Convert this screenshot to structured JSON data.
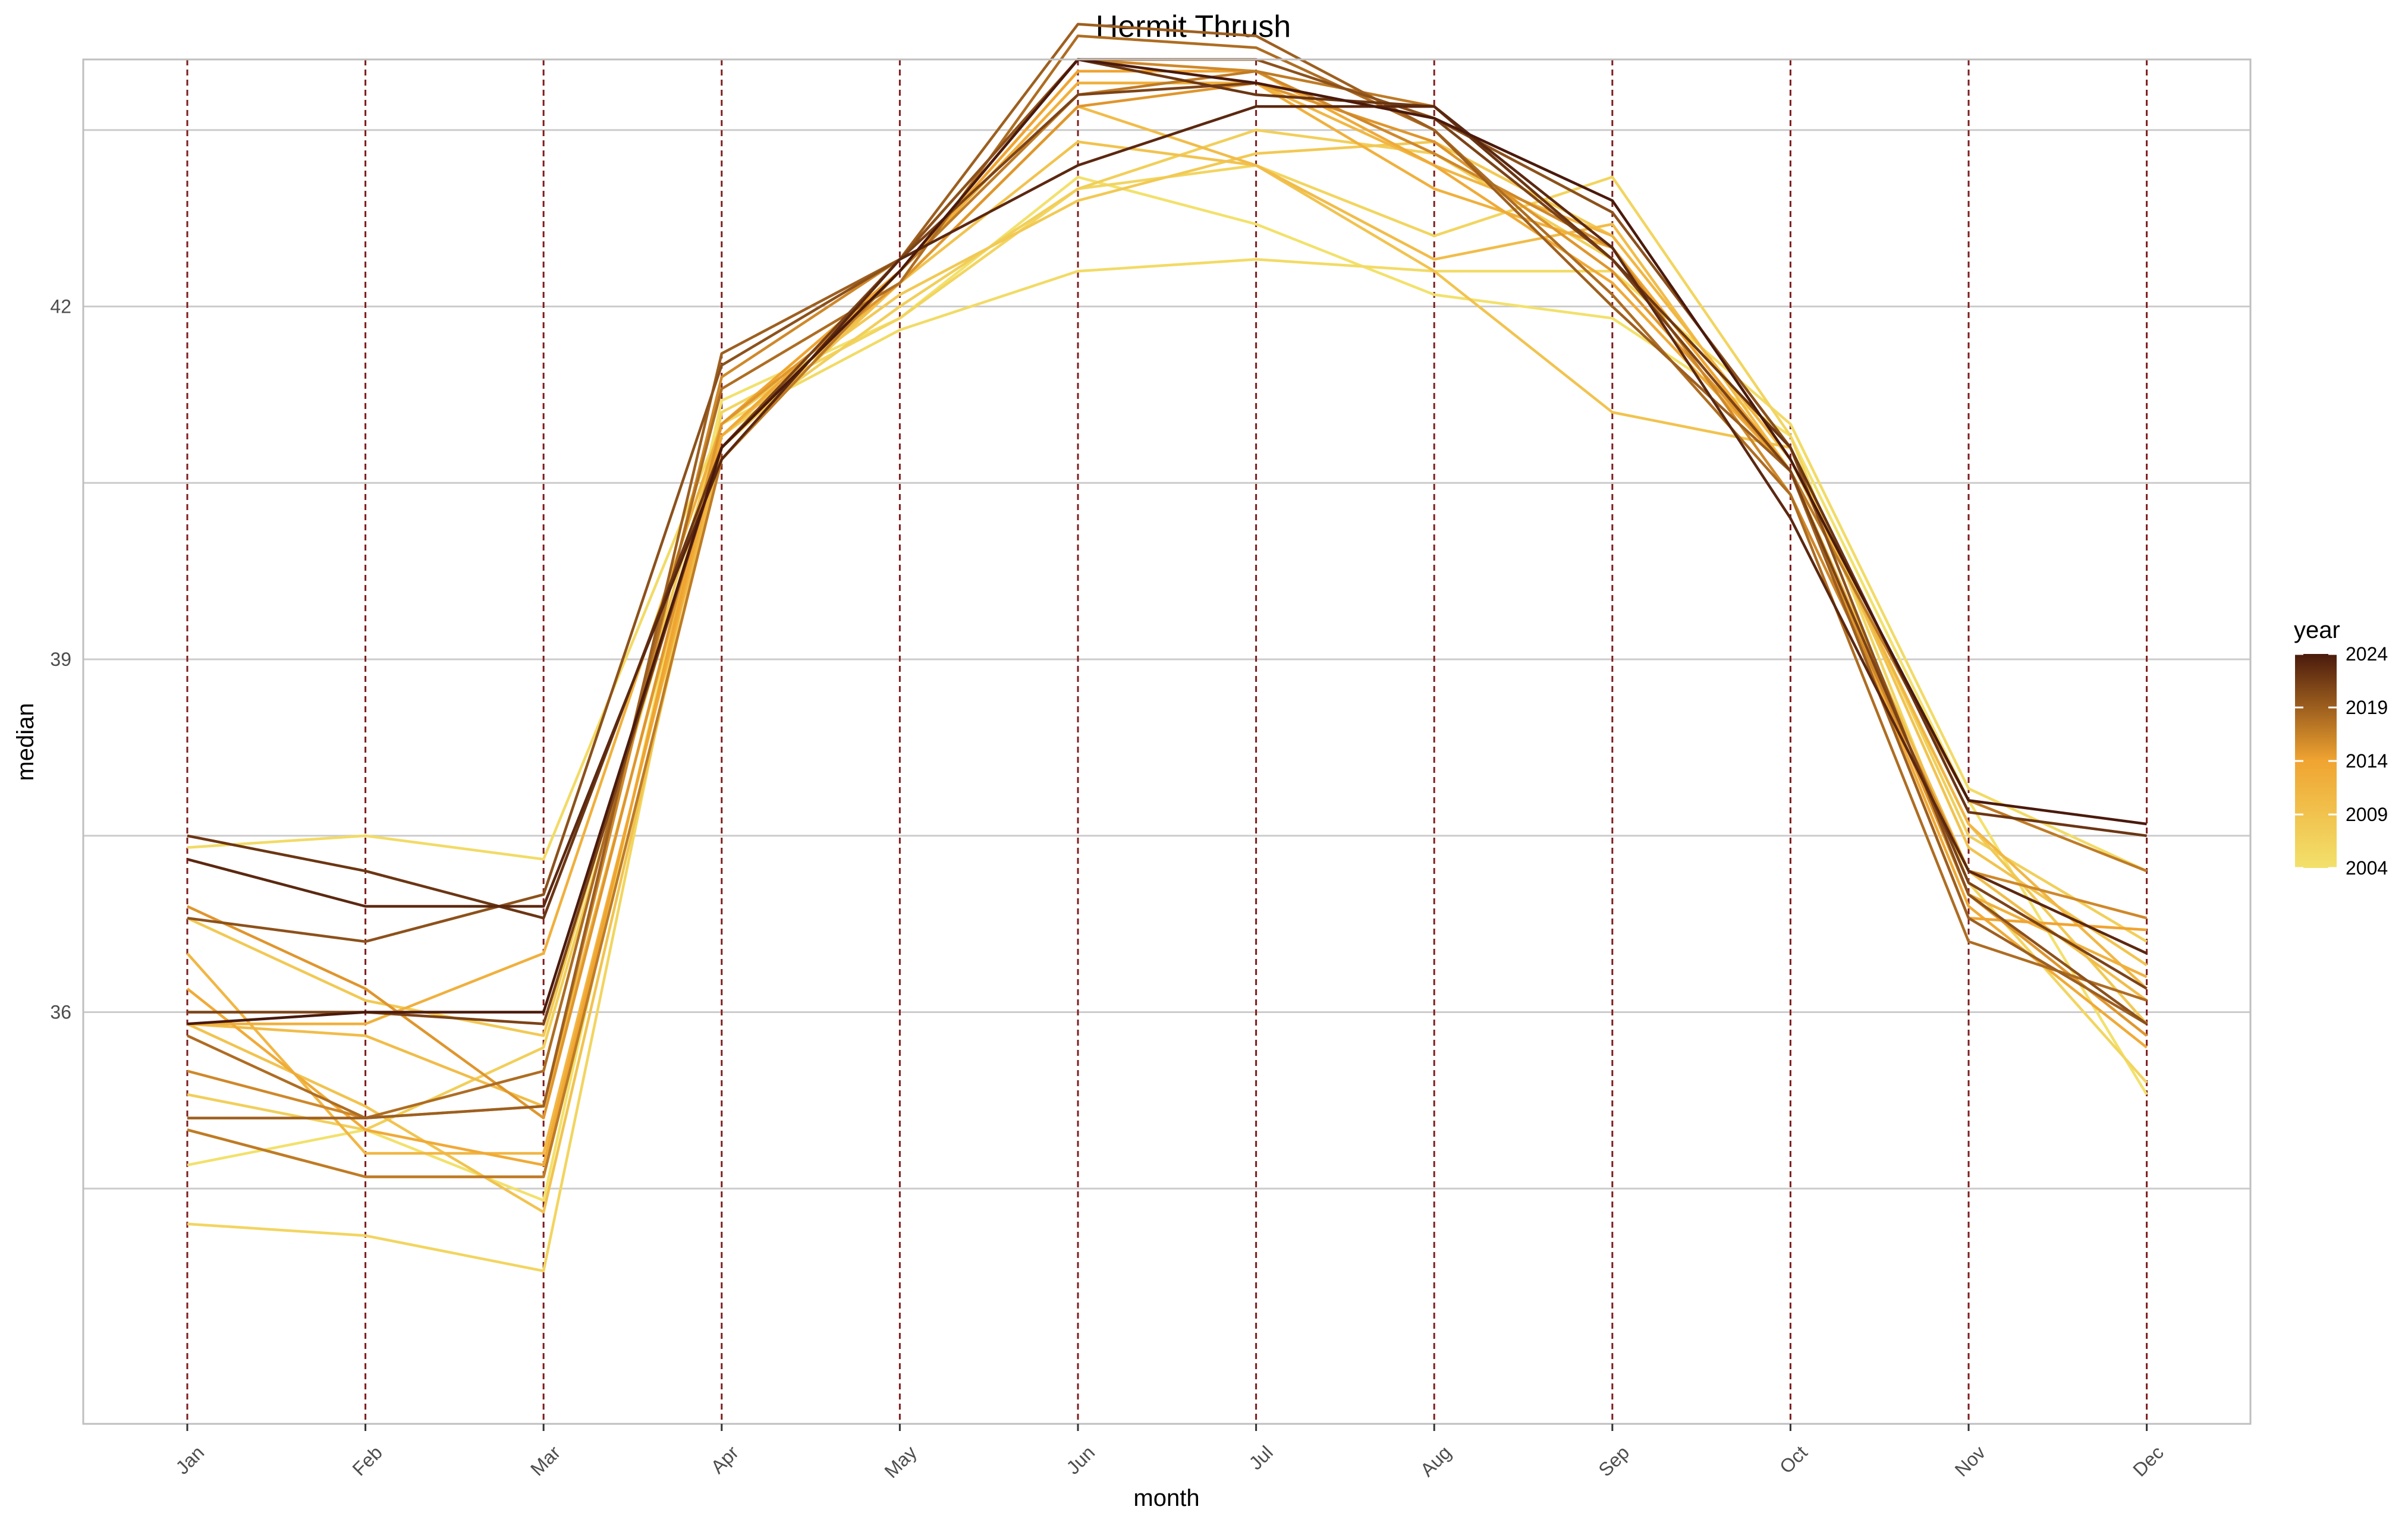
{
  "chart_data": {
    "type": "line",
    "title": "Hermit Thrush",
    "xlabel": "month",
    "ylabel": "median",
    "categories": [
      "Jan",
      "Feb",
      "Mar",
      "Apr",
      "May",
      "Jun",
      "Jul",
      "Aug",
      "Sep",
      "Oct",
      "Nov",
      "Dec"
    ],
    "ylim": [
      32.5,
      44.1
    ],
    "y_ticks": [
      36,
      39,
      42
    ],
    "grid": true,
    "month_marker_color": "#7f1d1d",
    "legend": {
      "title": "year",
      "position": "right",
      "ticks": [
        2024,
        2019,
        2014,
        2009,
        2004
      ],
      "low_color": "#f2e16c",
      "mid_color": "#f0a431",
      "high_color": "#4a1a0c"
    },
    "series": [
      {
        "year": 2004,
        "values": [
          34.7,
          35.0,
          34.4,
          41.2,
          41.9,
          43.1,
          42.7,
          42.1,
          41.9,
          40.9,
          37.8,
          35.3
        ]
      },
      {
        "year": 2005,
        "values": [
          37.4,
          37.5,
          37.3,
          41.0,
          41.8,
          42.3,
          42.4,
          42.3,
          42.3,
          41.0,
          37.9,
          37.2
        ]
      },
      {
        "year": 2006,
        "values": [
          34.2,
          34.1,
          33.8,
          41.1,
          41.9,
          43.0,
          43.2,
          42.6,
          43.1,
          40.9,
          37.1,
          35.4
        ]
      },
      {
        "year": 2007,
        "values": [
          35.3,
          35.0,
          35.7,
          40.9,
          42.0,
          43.0,
          43.5,
          43.3,
          42.4,
          40.8,
          37.5,
          36.6
        ]
      },
      {
        "year": 2008,
        "values": [
          36.8,
          36.1,
          35.8,
          41.0,
          42.1,
          42.9,
          43.3,
          43.4,
          42.6,
          40.7,
          37.6,
          35.9
        ]
      },
      {
        "year": 2009,
        "values": [
          35.9,
          35.2,
          34.3,
          40.8,
          42.2,
          43.4,
          43.2,
          42.3,
          41.1,
          40.8,
          37.4,
          36.4
        ]
      },
      {
        "year": 2010,
        "values": [
          35.9,
          35.8,
          35.2,
          40.9,
          42.2,
          43.7,
          43.2,
          42.4,
          42.7,
          40.6,
          37.2,
          36.1
        ]
      },
      {
        "year": 2011,
        "values": [
          36.5,
          34.8,
          34.8,
          40.8,
          42.3,
          43.9,
          43.9,
          43.2,
          42.6,
          40.7,
          37.6,
          36.2
        ]
      },
      {
        "year": 2012,
        "values": [
          35.9,
          35.9,
          36.5,
          41.0,
          42.3,
          43.9,
          43.9,
          43.0,
          42.5,
          40.6,
          37.0,
          36.3
        ]
      },
      {
        "year": 2013,
        "values": [
          36.2,
          35.0,
          34.7,
          40.9,
          42.3,
          44.0,
          44.0,
          43.2,
          42.2,
          40.6,
          36.9,
          35.7
        ]
      },
      {
        "year": 2014,
        "values": [
          35.0,
          34.6,
          34.6,
          41.0,
          42.3,
          44.0,
          44.0,
          43.3,
          42.5,
          40.6,
          36.8,
          36.7
        ]
      },
      {
        "year": 2015,
        "values": [
          36.9,
          36.2,
          35.1,
          41.0,
          42.2,
          43.7,
          43.9,
          43.4,
          42.3,
          40.6,
          37.0,
          35.8
        ]
      },
      {
        "year": 2016,
        "values": [
          35.5,
          35.1,
          35.2,
          41.4,
          42.4,
          44.1,
          44.0,
          43.3,
          42.5,
          40.4,
          37.2,
          36.8
        ]
      },
      {
        "year": 2017,
        "values": [
          35.0,
          34.6,
          34.6,
          40.7,
          42.3,
          43.8,
          44.0,
          43.7,
          42.4,
          40.6,
          37.8,
          37.2
        ]
      },
      {
        "year": 2018,
        "values": [
          35.8,
          35.1,
          35.5,
          41.3,
          42.2,
          44.3,
          44.2,
          43.5,
          42.1,
          40.4,
          36.6,
          36.1
        ]
      },
      {
        "year": 2019,
        "values": [
          35.1,
          35.1,
          35.2,
          41.6,
          42.4,
          44.4,
          44.3,
          43.5,
          42.0,
          40.6,
          36.8,
          35.9
        ]
      },
      {
        "year": 2020,
        "values": [
          36.8,
          36.6,
          37.0,
          41.5,
          42.4,
          44.1,
          44.1,
          43.6,
          42.8,
          40.8,
          37.0,
          35.9
        ]
      },
      {
        "year": 2021,
        "values": [
          36.0,
          36.0,
          35.9,
          40.8,
          42.4,
          43.8,
          43.9,
          43.6,
          42.4,
          40.6,
          37.1,
          36.2
        ]
      },
      {
        "year": 2022,
        "values": [
          37.5,
          37.2,
          36.8,
          40.8,
          42.3,
          44.1,
          43.8,
          43.7,
          42.4,
          40.8,
          37.7,
          37.5
        ]
      },
      {
        "year": 2023,
        "values": [
          37.3,
          36.9,
          36.9,
          40.7,
          42.4,
          43.2,
          43.7,
          43.7,
          42.5,
          40.2,
          37.2,
          36.5
        ]
      },
      {
        "year": 2024,
        "values": [
          35.9,
          36.0,
          36.0,
          40.8,
          42.3,
          44.1,
          43.9,
          43.6,
          42.9,
          40.7,
          37.8,
          37.6
        ]
      }
    ]
  }
}
